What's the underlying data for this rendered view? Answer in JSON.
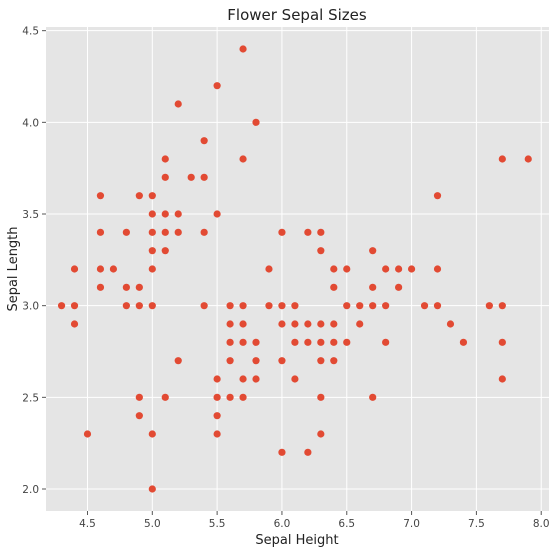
{
  "chart_data": {
    "type": "scatter",
    "title": "Flower Sepal Sizes",
    "xlabel": "Sepal Height",
    "ylabel": "Sepal Length",
    "xlim": [
      4.18,
      8.06
    ],
    "ylim": [
      1.88,
      4.52
    ],
    "x_ticks": [
      "4.5",
      "5.0",
      "5.5",
      "6.0",
      "6.5",
      "7.0",
      "7.5",
      "8.0"
    ],
    "y_ticks": [
      "2.0",
      "2.5",
      "3.0",
      "3.5",
      "4.0",
      "4.5"
    ],
    "grid": true,
    "marker_color": "#e24a33",
    "background_color": "#e5e5e5",
    "points": [
      [
        4.3,
        3.0
      ],
      [
        4.4,
        2.9
      ],
      [
        4.4,
        3.0
      ],
      [
        4.4,
        3.2
      ],
      [
        4.5,
        2.3
      ],
      [
        4.6,
        3.1
      ],
      [
        4.6,
        3.2
      ],
      [
        4.6,
        3.4
      ],
      [
        4.6,
        3.6
      ],
      [
        4.7,
        3.2
      ],
      [
        4.8,
        3.0
      ],
      [
        4.8,
        3.1
      ],
      [
        4.8,
        3.4
      ],
      [
        4.9,
        2.4
      ],
      [
        4.9,
        2.5
      ],
      [
        4.9,
        3.0
      ],
      [
        4.9,
        3.1
      ],
      [
        4.9,
        3.6
      ],
      [
        5.0,
        2.0
      ],
      [
        5.0,
        2.3
      ],
      [
        5.0,
        3.0
      ],
      [
        5.0,
        3.2
      ],
      [
        5.0,
        3.3
      ],
      [
        5.0,
        3.4
      ],
      [
        5.0,
        3.5
      ],
      [
        5.0,
        3.6
      ],
      [
        5.1,
        2.5
      ],
      [
        5.1,
        3.3
      ],
      [
        5.1,
        3.4
      ],
      [
        5.1,
        3.5
      ],
      [
        5.1,
        3.7
      ],
      [
        5.1,
        3.8
      ],
      [
        5.2,
        2.7
      ],
      [
        5.2,
        3.4
      ],
      [
        5.2,
        3.5
      ],
      [
        5.2,
        4.1
      ],
      [
        5.3,
        3.7
      ],
      [
        5.4,
        3.0
      ],
      [
        5.4,
        3.4
      ],
      [
        5.4,
        3.7
      ],
      [
        5.4,
        3.9
      ],
      [
        5.5,
        2.3
      ],
      [
        5.5,
        2.4
      ],
      [
        5.5,
        2.5
      ],
      [
        5.5,
        2.6
      ],
      [
        5.5,
        3.5
      ],
      [
        5.5,
        4.2
      ],
      [
        5.6,
        2.5
      ],
      [
        5.6,
        2.7
      ],
      [
        5.6,
        2.8
      ],
      [
        5.6,
        2.9
      ],
      [
        5.6,
        3.0
      ],
      [
        5.7,
        2.5
      ],
      [
        5.7,
        2.6
      ],
      [
        5.7,
        2.8
      ],
      [
        5.7,
        2.9
      ],
      [
        5.7,
        3.0
      ],
      [
        5.7,
        3.8
      ],
      [
        5.7,
        4.4
      ],
      [
        5.8,
        2.6
      ],
      [
        5.8,
        2.7
      ],
      [
        5.8,
        2.8
      ],
      [
        5.8,
        4.0
      ],
      [
        5.9,
        3.0
      ],
      [
        5.9,
        3.2
      ],
      [
        6.0,
        2.2
      ],
      [
        6.0,
        2.7
      ],
      [
        6.0,
        2.9
      ],
      [
        6.0,
        3.0
      ],
      [
        6.0,
        3.4
      ],
      [
        6.1,
        2.6
      ],
      [
        6.1,
        2.8
      ],
      [
        6.1,
        2.9
      ],
      [
        6.1,
        3.0
      ],
      [
        6.2,
        2.2
      ],
      [
        6.2,
        2.8
      ],
      [
        6.2,
        2.9
      ],
      [
        6.2,
        3.4
      ],
      [
        6.3,
        2.3
      ],
      [
        6.3,
        2.5
      ],
      [
        6.3,
        2.7
      ],
      [
        6.3,
        2.8
      ],
      [
        6.3,
        2.9
      ],
      [
        6.3,
        3.3
      ],
      [
        6.3,
        3.4
      ],
      [
        6.4,
        2.7
      ],
      [
        6.4,
        2.8
      ],
      [
        6.4,
        2.9
      ],
      [
        6.4,
        3.1
      ],
      [
        6.4,
        3.2
      ],
      [
        6.5,
        2.8
      ],
      [
        6.5,
        3.0
      ],
      [
        6.5,
        3.2
      ],
      [
        6.6,
        2.9
      ],
      [
        6.6,
        3.0
      ],
      [
        6.7,
        2.5
      ],
      [
        6.7,
        3.0
      ],
      [
        6.7,
        3.1
      ],
      [
        6.7,
        3.3
      ],
      [
        6.8,
        2.8
      ],
      [
        6.8,
        3.0
      ],
      [
        6.8,
        3.2
      ],
      [
        6.9,
        3.1
      ],
      [
        6.9,
        3.2
      ],
      [
        7.0,
        3.2
      ],
      [
        7.1,
        3.0
      ],
      [
        7.2,
        3.0
      ],
      [
        7.2,
        3.2
      ],
      [
        7.2,
        3.6
      ],
      [
        7.3,
        2.9
      ],
      [
        7.4,
        2.8
      ],
      [
        7.6,
        3.0
      ],
      [
        7.7,
        2.6
      ],
      [
        7.7,
        2.8
      ],
      [
        7.7,
        3.0
      ],
      [
        7.7,
        3.8
      ],
      [
        7.9,
        3.8
      ]
    ]
  }
}
